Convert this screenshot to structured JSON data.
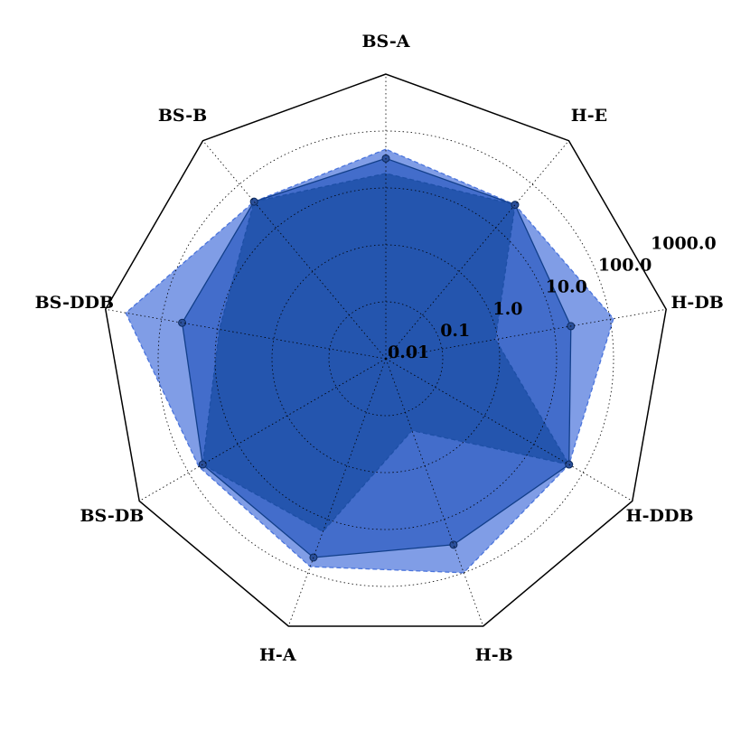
{
  "chart_data": {
    "type": "radar",
    "log_scale": true,
    "categories": [
      "BS-A",
      "BS-B",
      "BS-DDB",
      "BS-DB",
      "H-A",
      "H-B",
      "H-DDB",
      "H-DB",
      "H-E"
    ],
    "series": [
      {
        "color": "#4a74dc",
        "fill_opacity": 0.7,
        "linestyle": "dashed",
        "markers": false,
        "values": [
          48,
          40,
          435,
          62,
          77,
          100,
          52,
          115,
          34
        ]
      },
      {
        "color": "#2f5dc2",
        "fill_opacity": 0.75,
        "linestyle": "solid",
        "markers": true,
        "values": [
          33,
          40,
          43,
          52,
          52,
          30,
          52,
          20,
          34
        ]
      },
      {
        "color": "#1d4fa6",
        "fill_opacity": 0.8,
        "linestyle": "dashed",
        "markers": false,
        "values": [
          18,
          40,
          9.3,
          52,
          17,
          0.22,
          52,
          0.9,
          34
        ]
      }
    ],
    "ylim": [
      0.01,
      1000
    ],
    "yticks": [
      0.01,
      0.1,
      {
        "value": 1,
        "label": "1.0"
      },
      {
        "value": 10,
        "label": "10.0"
      },
      {
        "value": 100,
        "label": "100.0"
      },
      {
        "value": 1000,
        "label": "1000.0"
      }
    ],
    "grid": true
  }
}
